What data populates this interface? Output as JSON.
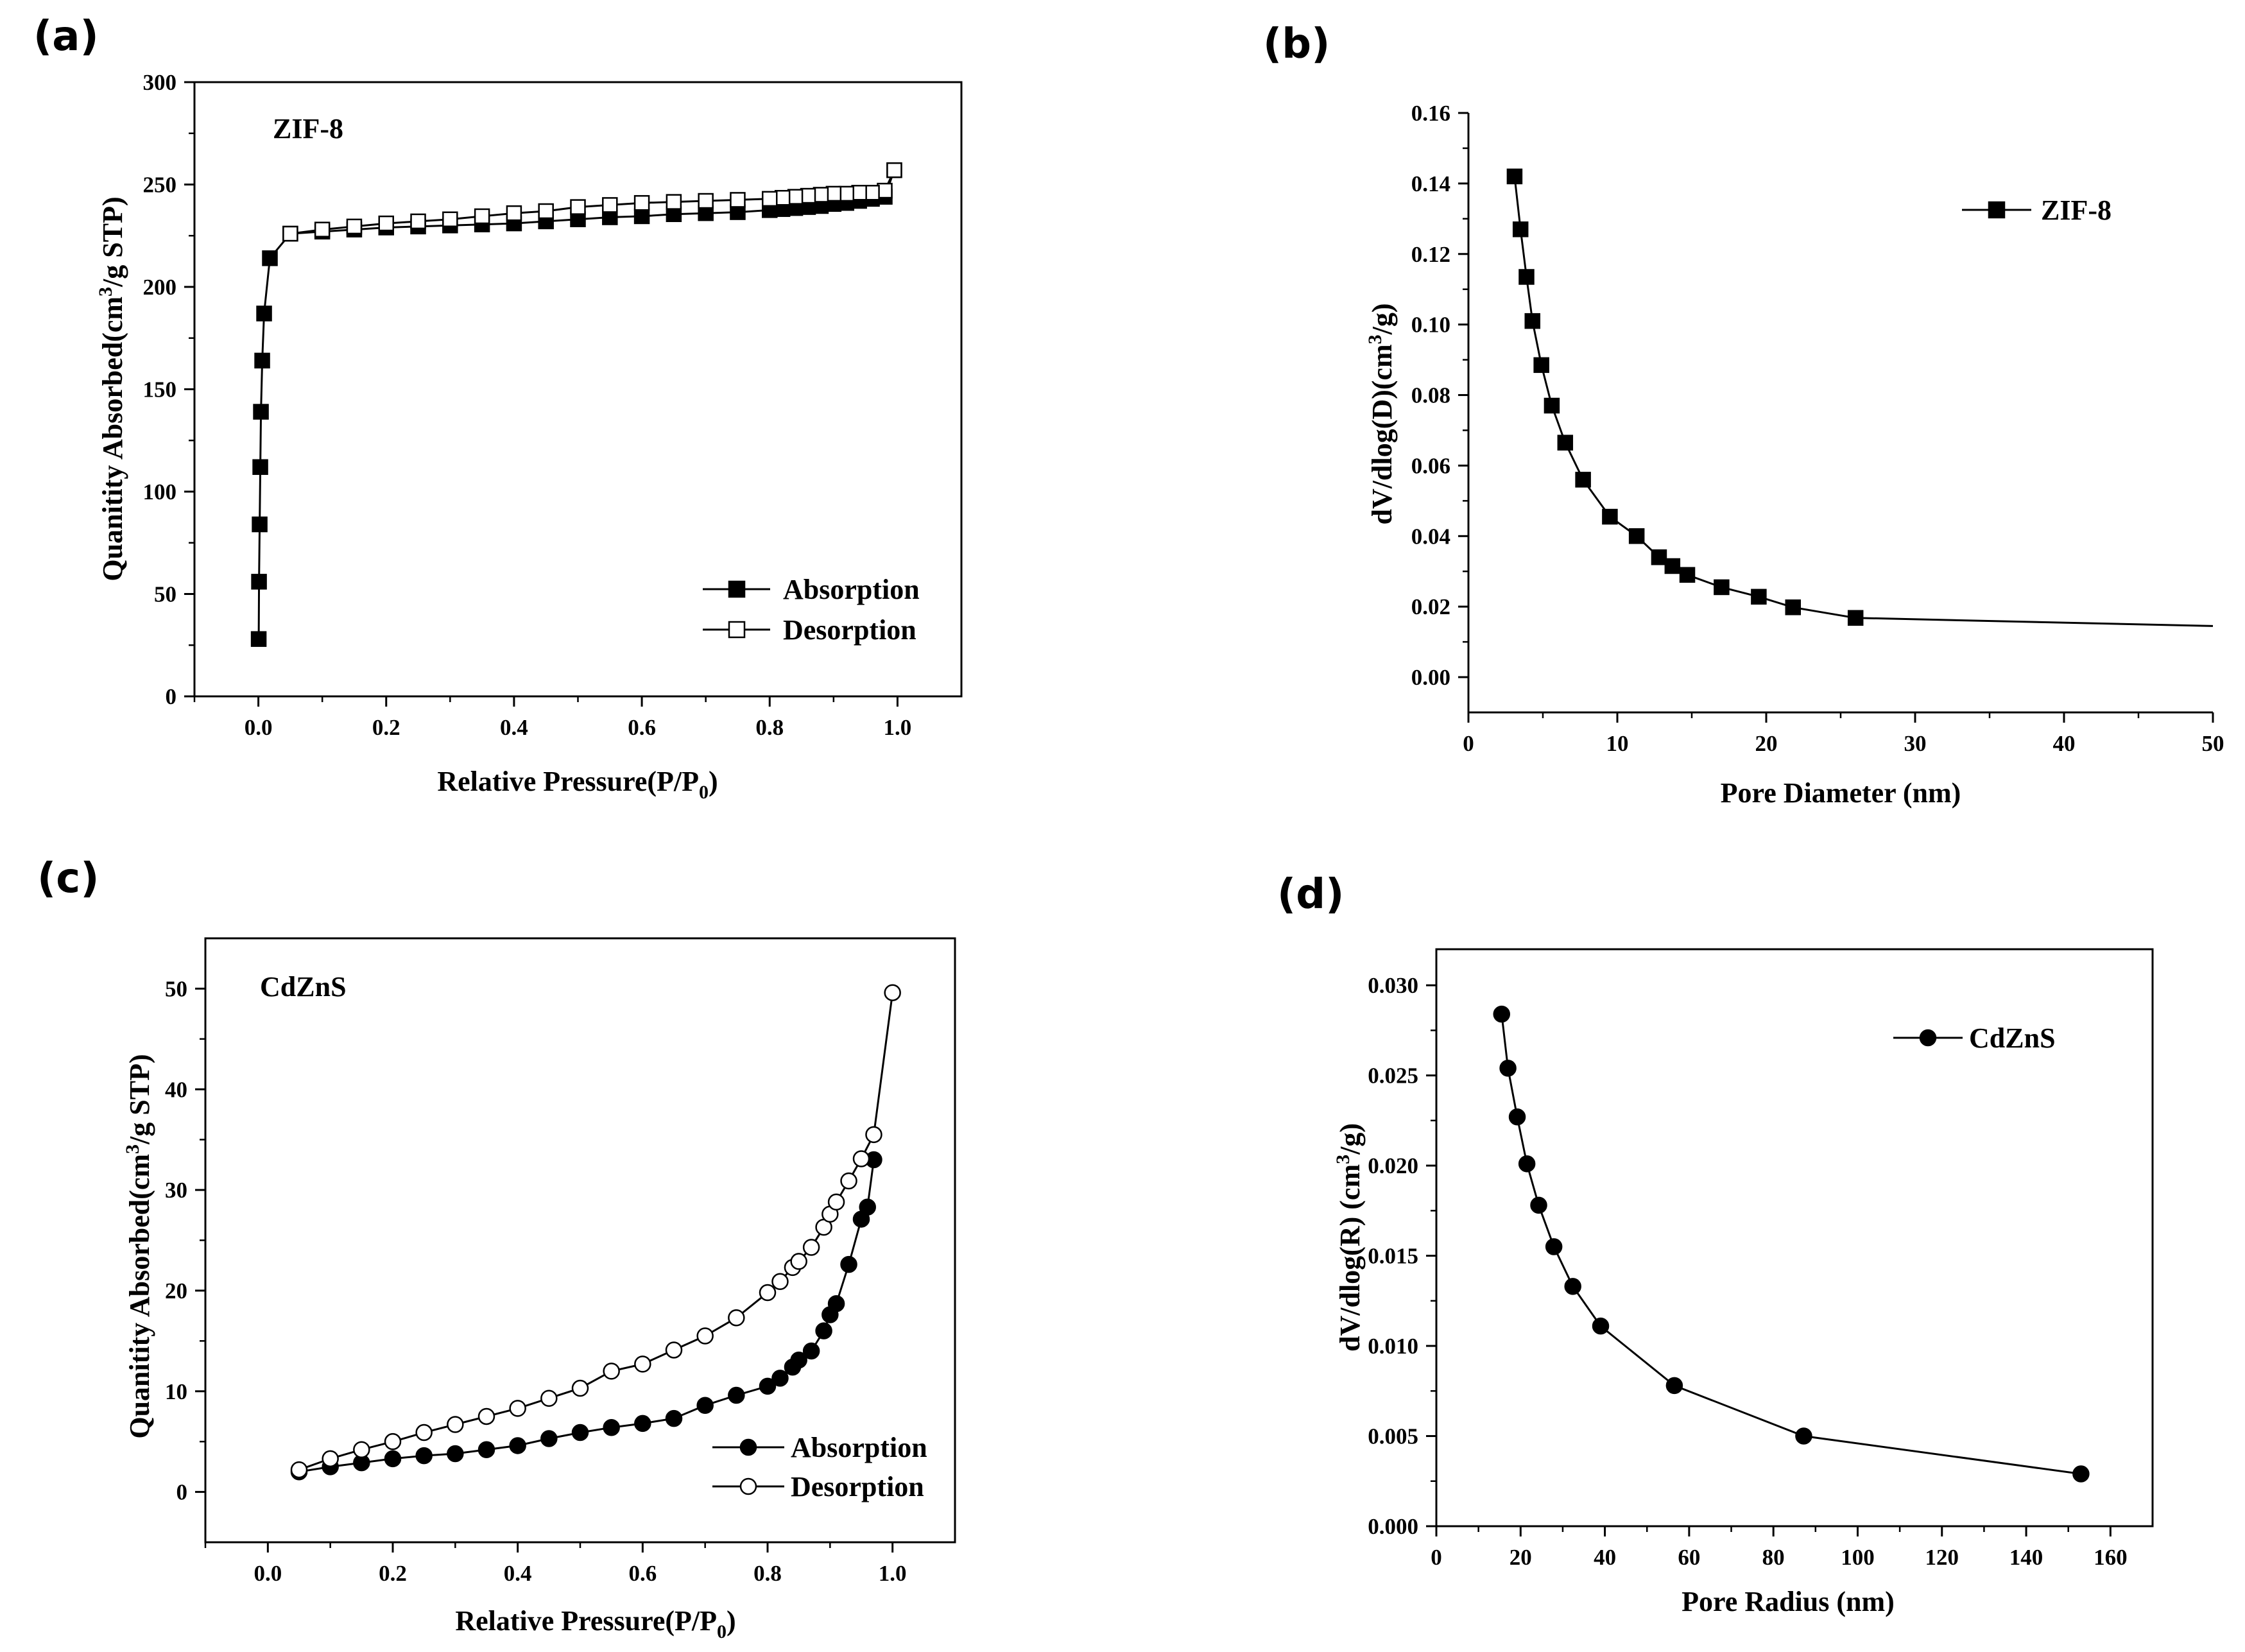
{
  "chart_data": [
    {
      "id": "a",
      "type": "scatter",
      "panel_label": "(a)",
      "annotation": "ZIF-8",
      "xlabel": "Relative Pressure(P/P",
      "xlabel_sub": "0",
      "xlabel_end": ")",
      "ylabel": "Quanitity Absorbed(cm",
      "ylabel_sup": "3",
      "ylabel_end": "/g STP)",
      "xlim": [
        -0.1,
        1.1
      ],
      "ylim": [
        0,
        300
      ],
      "xticks": [
        0.0,
        0.2,
        0.4,
        0.6,
        0.8,
        1.0
      ],
      "xtick_labels": [
        "0.0",
        "0.2",
        "0.4",
        "0.6",
        "0.8",
        "1.0"
      ],
      "yticks": [
        0,
        50,
        100,
        150,
        200,
        250,
        300
      ],
      "ytick_labels": [
        "0",
        "50",
        "100",
        "150",
        "200",
        "250",
        "300"
      ],
      "legend_position": "bottom-right",
      "series": [
        {
          "name": "Absorption",
          "marker": "square-filled",
          "x": [
            0.0005,
            0.001,
            0.002,
            0.003,
            0.004,
            0.006,
            0.009,
            0.018,
            0.05,
            0.1,
            0.15,
            0.2,
            0.25,
            0.3,
            0.35,
            0.4,
            0.45,
            0.5,
            0.55,
            0.6,
            0.65,
            0.7,
            0.75,
            0.8,
            0.82,
            0.84,
            0.86,
            0.88,
            0.9,
            0.92,
            0.94,
            0.96,
            0.98,
            0.995
          ],
          "y": [
            28,
            56,
            84,
            112,
            139,
            164,
            187,
            214,
            226,
            227,
            228,
            229,
            229.5,
            230,
            230.5,
            231,
            232,
            233,
            234,
            234.5,
            235.5,
            236,
            236.5,
            237.5,
            238,
            238.5,
            239,
            239.5,
            240.5,
            241,
            242,
            243,
            244,
            257
          ]
        },
        {
          "name": "Desorption",
          "marker": "square-open",
          "x": [
            0.995,
            0.98,
            0.96,
            0.94,
            0.92,
            0.9,
            0.88,
            0.86,
            0.84,
            0.82,
            0.8,
            0.75,
            0.7,
            0.65,
            0.6,
            0.55,
            0.5,
            0.45,
            0.4,
            0.35,
            0.3,
            0.25,
            0.2,
            0.15,
            0.1,
            0.05
          ],
          "y": [
            257,
            247,
            246,
            246,
            245.5,
            245.5,
            245,
            244.5,
            244,
            243.5,
            243,
            242.5,
            242,
            241.5,
            241,
            240,
            239,
            237,
            236,
            234.5,
            233,
            232,
            231,
            229.5,
            228,
            226
          ]
        }
      ]
    },
    {
      "id": "b",
      "type": "line",
      "panel_label": "(b)",
      "xlabel": "Pore Diameter (nm)",
      "ylabel": "dV/dlog(D)(cm",
      "ylabel_sup": "3",
      "ylabel_end": "/g)",
      "xlim": [
        0,
        50
      ],
      "ylim": [
        -0.01,
        0.16
      ],
      "xticks": [
        0,
        10,
        20,
        30,
        40,
        50
      ],
      "xtick_labels": [
        "0",
        "10",
        "20",
        "30",
        "40",
        "50"
      ],
      "yticks": [
        0.0,
        0.02,
        0.04,
        0.06,
        0.08,
        0.1,
        0.12,
        0.14,
        0.16
      ],
      "ytick_labels": [
        "0.00",
        "0.02",
        "0.04",
        "0.06",
        "0.08",
        "0.10",
        "0.12",
        "0.14",
        "0.16"
      ],
      "legend_position": "top-right",
      "series": [
        {
          "name": "ZIF-8",
          "marker": "square-filled",
          "x": [
            3.1,
            3.5,
            3.9,
            4.3,
            4.9,
            5.6,
            6.5,
            7.7,
            9.5,
            11.3,
            12.8,
            13.7,
            14.7,
            17.0,
            19.5,
            21.8,
            26.0
          ],
          "y": [
            0.142,
            0.127,
            0.1135,
            0.101,
            0.0885,
            0.077,
            0.0665,
            0.056,
            0.0455,
            0.04,
            0.034,
            0.0315,
            0.029,
            0.0255,
            0.0228,
            0.0198,
            0.0168
          ]
        }
      ],
      "line_extension": {
        "x": [
          26.0,
          50.0
        ],
        "y": [
          0.0168,
          0.0145
        ]
      }
    },
    {
      "id": "c",
      "type": "scatter",
      "panel_label": "(c)",
      "annotation": "CdZnS",
      "xlabel": "Relative Pressure(P/P",
      "xlabel_sub": "0",
      "xlabel_end": ")",
      "ylabel": "Quanitity Absorbed(cm",
      "ylabel_sup": "3",
      "ylabel_end": "/g STP)",
      "xlim": [
        -0.1,
        1.1
      ],
      "ylim": [
        -5,
        55
      ],
      "xticks": [
        0.0,
        0.2,
        0.4,
        0.6,
        0.8,
        1.0
      ],
      "xtick_labels": [
        "0.0",
        "0.2",
        "0.4",
        "0.6",
        "0.8",
        "1.0"
      ],
      "yticks": [
        0,
        10,
        20,
        30,
        40,
        50
      ],
      "ytick_labels": [
        "0",
        "10",
        "20",
        "30",
        "40",
        "50"
      ],
      "legend_position": "bottom-right",
      "series": [
        {
          "name": "Absorption",
          "marker": "circle-filled",
          "x": [
            0.05,
            0.1,
            0.15,
            0.2,
            0.25,
            0.3,
            0.35,
            0.4,
            0.45,
            0.5,
            0.55,
            0.6,
            0.65,
            0.7,
            0.75,
            0.8,
            0.82,
            0.84,
            0.85,
            0.87,
            0.89,
            0.9,
            0.91,
            0.93,
            0.95,
            0.96,
            0.97
          ],
          "y": [
            2.0,
            2.5,
            2.9,
            3.3,
            3.6,
            3.8,
            4.2,
            4.6,
            5.3,
            5.9,
            6.4,
            6.8,
            7.3,
            8.6,
            9.6,
            10.5,
            11.3,
            12.4,
            13.1,
            14.0,
            16.0,
            17.6,
            18.7,
            22.6,
            27.1,
            28.3,
            33.0
          ]
        },
        {
          "name": "Desorption",
          "marker": "circle-open",
          "x": [
            0.05,
            0.1,
            0.15,
            0.2,
            0.25,
            0.3,
            0.35,
            0.4,
            0.45,
            0.5,
            0.55,
            0.6,
            0.65,
            0.7,
            0.75,
            0.8,
            0.82,
            0.84,
            0.85,
            0.87,
            0.89,
            0.9,
            0.91,
            0.93,
            0.95,
            0.97,
            1.0
          ],
          "y": [
            2.2,
            3.3,
            4.2,
            5.0,
            5.9,
            6.7,
            7.5,
            8.3,
            9.3,
            10.3,
            12.0,
            12.7,
            14.1,
            15.5,
            17.3,
            19.8,
            20.9,
            22.3,
            22.9,
            24.3,
            26.3,
            27.6,
            28.8,
            30.9,
            33.1,
            35.5,
            49.6
          ]
        }
      ]
    },
    {
      "id": "d",
      "type": "line",
      "panel_label": "(d)",
      "xlabel": "Pore Radius (nm)",
      "ylabel": "dV/dlog(R) (cm",
      "ylabel_sup": "3",
      "ylabel_end": "/g)",
      "xlim": [
        0,
        170
      ],
      "ylim": [
        0,
        0.032
      ],
      "xticks": [
        0,
        20,
        40,
        60,
        80,
        100,
        120,
        140,
        160
      ],
      "xtick_labels": [
        "0",
        "20",
        "40",
        "60",
        "80",
        "100",
        "120",
        "140",
        "160"
      ],
      "yticks": [
        0.0,
        0.005,
        0.01,
        0.015,
        0.02,
        0.025,
        0.03
      ],
      "ytick_labels": [
        "0.000",
        "0.005",
        "0.010",
        "0.015",
        "0.020",
        "0.025",
        "0.030"
      ],
      "legend_position": "top-right",
      "series": [
        {
          "name": "CdZnS",
          "marker": "circle-filled",
          "x": [
            15.5,
            17.0,
            19.2,
            21.5,
            24.3,
            27.9,
            32.4,
            39.0,
            56.5,
            87.2,
            153.0
          ],
          "y": [
            0.0284,
            0.0254,
            0.0227,
            0.0201,
            0.0178,
            0.0155,
            0.0133,
            0.0111,
            0.0078,
            0.005,
            0.0029
          ]
        }
      ]
    }
  ]
}
